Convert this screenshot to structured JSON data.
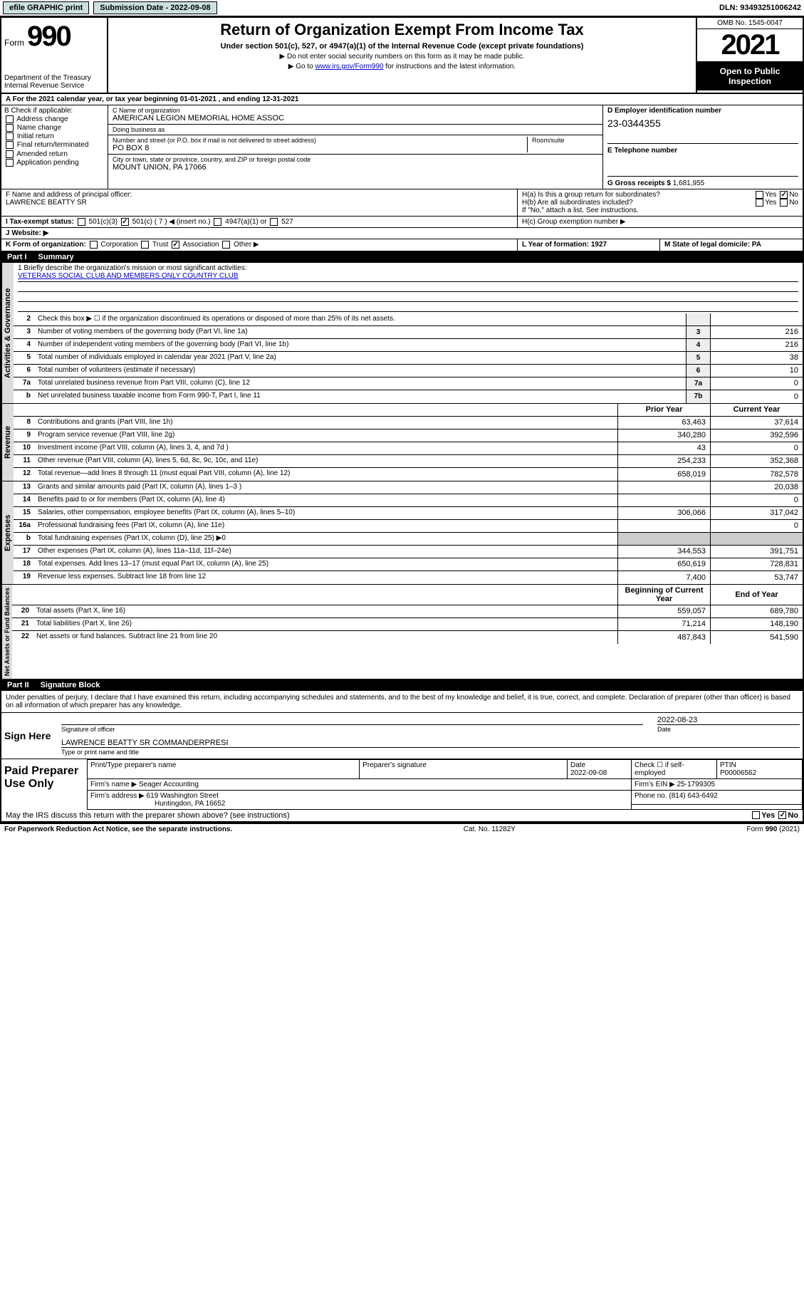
{
  "topbar": {
    "efile": "efile GRAPHIC print",
    "submission_label": "Submission Date - 2022-09-08",
    "dln": "DLN: 93493251006242"
  },
  "header": {
    "form_word": "Form",
    "form_num": "990",
    "title": "Return of Organization Exempt From Income Tax",
    "subtitle": "Under section 501(c), 527, or 4947(a)(1) of the Internal Revenue Code (except private foundations)",
    "note1": "▶ Do not enter social security numbers on this form as it may be made public.",
    "note2_prefix": "▶ Go to ",
    "note2_link": "www.irs.gov/Form990",
    "note2_suffix": " for instructions and the latest information.",
    "dept": "Department of the Treasury",
    "irs": "Internal Revenue Service",
    "omb": "OMB No. 1545-0047",
    "year": "2021",
    "open_public": "Open to Public Inspection"
  },
  "row_a": "A For the 2021 calendar year, or tax year beginning 01-01-2021   , and ending 12-31-2021",
  "section_b": {
    "label": "B Check if applicable:",
    "opts": [
      "Address change",
      "Name change",
      "Initial return",
      "Final return/terminated",
      "Amended return",
      "Application pending"
    ]
  },
  "section_c": {
    "name_label": "C Name of organization",
    "name": "AMERICAN LEGION MEMORIAL HOME ASSOC",
    "dba_label": "Doing business as",
    "dba": "",
    "street_label": "Number and street (or P.O. box if mail is not delivered to street address)",
    "street": "PO BOX 8",
    "room_label": "Room/suite",
    "city_label": "City or town, state or province, country, and ZIP or foreign postal code",
    "city": "MOUNT UNION, PA   17066"
  },
  "section_d": {
    "label": "D Employer identification number",
    "ein": "23-0344355",
    "e_label": "E Telephone number",
    "phone": "",
    "g_label": "G Gross receipts $",
    "g_val": "1,681,955"
  },
  "row_f": {
    "label": "F  Name and address of principal officer:",
    "val": "LAWRENCE BEATTY SR"
  },
  "row_h": {
    "ha": "H(a)  Is this a group return for subordinates?",
    "hb": "H(b)  Are all subordinates included?",
    "hb_note": "If \"No,\" attach a list. See instructions.",
    "hc": "H(c)  Group exemption number ▶",
    "yes": "Yes",
    "no": "No"
  },
  "row_i": {
    "label": "I    Tax-exempt status:",
    "c3": "501(c)(3)",
    "c": "501(c) ( 7 ) ◀ (insert no.)",
    "a1": "4947(a)(1) or",
    "527": "527"
  },
  "row_j": {
    "label": "J   Website: ▶"
  },
  "row_k": {
    "label": "K Form of organization:",
    "corp": "Corporation",
    "trust": "Trust",
    "assoc": "Association",
    "other": "Other ▶"
  },
  "row_l": {
    "label": "L Year of formation: 1927"
  },
  "row_m": {
    "label": "M State of legal domicile: PA"
  },
  "part1": {
    "label": "Part I",
    "title": "Summary"
  },
  "mission": {
    "q1": "1  Briefly describe the organization's mission or most significant activities:",
    "text": "VETERANS SOCIAL CLUB AND MEMBERS ONLY COUNTRY CLUB"
  },
  "governance_rows": [
    {
      "n": "2",
      "desc": "Check this box ▶ ☐  if the organization discontinued its operations or disposed of more than 25% of its net assets.",
      "box": "",
      "v": ""
    },
    {
      "n": "3",
      "desc": "Number of voting members of the governing body (Part VI, line 1a)",
      "box": "3",
      "v": "216"
    },
    {
      "n": "4",
      "desc": "Number of independent voting members of the governing body (Part VI, line 1b)",
      "box": "4",
      "v": "216"
    },
    {
      "n": "5",
      "desc": "Total number of individuals employed in calendar year 2021 (Part V, line 2a)",
      "box": "5",
      "v": "38"
    },
    {
      "n": "6",
      "desc": "Total number of volunteers (estimate if necessary)",
      "box": "6",
      "v": "10"
    },
    {
      "n": "7a",
      "desc": "Total unrelated business revenue from Part VIII, column (C), line 12",
      "box": "7a",
      "v": "0"
    },
    {
      "n": "b",
      "desc": "Net unrelated business taxable income from Form 990-T, Part I, line 11",
      "box": "7b",
      "v": "0"
    }
  ],
  "col_headers": {
    "prior": "Prior Year",
    "current": "Current Year",
    "begin": "Beginning of Current Year",
    "end": "End of Year"
  },
  "revenue_rows": [
    {
      "n": "8",
      "desc": "Contributions and grants (Part VIII, line 1h)",
      "p": "63,463",
      "c": "37,614"
    },
    {
      "n": "9",
      "desc": "Program service revenue (Part VIII, line 2g)",
      "p": "340,280",
      "c": "392,596"
    },
    {
      "n": "10",
      "desc": "Investment income (Part VIII, column (A), lines 3, 4, and 7d )",
      "p": "43",
      "c": "0"
    },
    {
      "n": "11",
      "desc": "Other revenue (Part VIII, column (A), lines 5, 6d, 8c, 9c, 10c, and 11e)",
      "p": "254,233",
      "c": "352,368"
    },
    {
      "n": "12",
      "desc": "Total revenue—add lines 8 through 11 (must equal Part VIII, column (A), line 12)",
      "p": "658,019",
      "c": "782,578"
    }
  ],
  "expense_rows": [
    {
      "n": "13",
      "desc": "Grants and similar amounts paid (Part IX, column (A), lines 1–3 )",
      "p": "",
      "c": "20,038"
    },
    {
      "n": "14",
      "desc": "Benefits paid to or for members (Part IX, column (A), line 4)",
      "p": "",
      "c": "0"
    },
    {
      "n": "15",
      "desc": "Salaries, other compensation, employee benefits (Part IX, column (A), lines 5–10)",
      "p": "306,066",
      "c": "317,042"
    },
    {
      "n": "16a",
      "desc": "Professional fundraising fees (Part IX, column (A), line 11e)",
      "p": "",
      "c": "0"
    },
    {
      "n": "b",
      "desc": "Total fundraising expenses (Part IX, column (D), line 25) ▶0",
      "p": "shaded",
      "c": "shaded"
    },
    {
      "n": "17",
      "desc": "Other expenses (Part IX, column (A), lines 11a–11d, 11f–24e)",
      "p": "344,553",
      "c": "391,751"
    },
    {
      "n": "18",
      "desc": "Total expenses. Add lines 13–17 (must equal Part IX, column (A), line 25)",
      "p": "650,619",
      "c": "728,831"
    },
    {
      "n": "19",
      "desc": "Revenue less expenses. Subtract line 18 from line 12",
      "p": "7,400",
      "c": "53,747"
    }
  ],
  "assets_rows": [
    {
      "n": "20",
      "desc": "Total assets (Part X, line 16)",
      "p": "559,057",
      "c": "689,780"
    },
    {
      "n": "21",
      "desc": "Total liabilities (Part X, line 26)",
      "p": "71,214",
      "c": "148,190"
    },
    {
      "n": "22",
      "desc": "Net assets or fund balances. Subtract line 21 from line 20",
      "p": "487,843",
      "c": "541,590"
    }
  ],
  "vtabs": {
    "gov": "Activities & Governance",
    "rev": "Revenue",
    "exp": "Expenses",
    "net": "Net Assets or Fund Balances"
  },
  "part2": {
    "label": "Part II",
    "title": "Signature Block"
  },
  "sig": {
    "declaration": "Under penalties of perjury, I declare that I have examined this return, including accompanying schedules and statements, and to the best of my knowledge and belief, it is true, correct, and complete. Declaration of preparer (other than officer) is based on all information of which preparer has any knowledge.",
    "sign_here": "Sign Here",
    "sig_officer": "Signature of officer",
    "date": "Date",
    "date_val": "2022-08-23",
    "name_title": "LAWRENCE BEATTY SR  COMMANDERPRESI",
    "name_label": "Type or print name and title",
    "paid": "Paid Preparer Use Only",
    "prep_name_label": "Print/Type preparer's name",
    "prep_sig_label": "Preparer's signature",
    "prep_date_label": "Date",
    "prep_date": "2022-09-08",
    "check_self": "Check ☐ if self-employed",
    "ptin_label": "PTIN",
    "ptin": "P00006562",
    "firm_name_label": "Firm's name     ▶",
    "firm_name": "Seager Accounting",
    "firm_ein_label": "Firm's EIN ▶",
    "firm_ein": "25-1799305",
    "firm_addr_label": "Firm's address ▶",
    "firm_addr1": "619 Washington Street",
    "firm_addr2": "Huntingdon, PA  16652",
    "firm_phone_label": "Phone no.",
    "firm_phone": "(814) 643-6492",
    "may_irs": "May the IRS discuss this return with the preparer shown above? (see instructions)"
  },
  "footer": {
    "pra": "For Paperwork Reduction Act Notice, see the separate instructions.",
    "cat": "Cat. No. 11282Y",
    "form": "Form 990 (2021)"
  }
}
